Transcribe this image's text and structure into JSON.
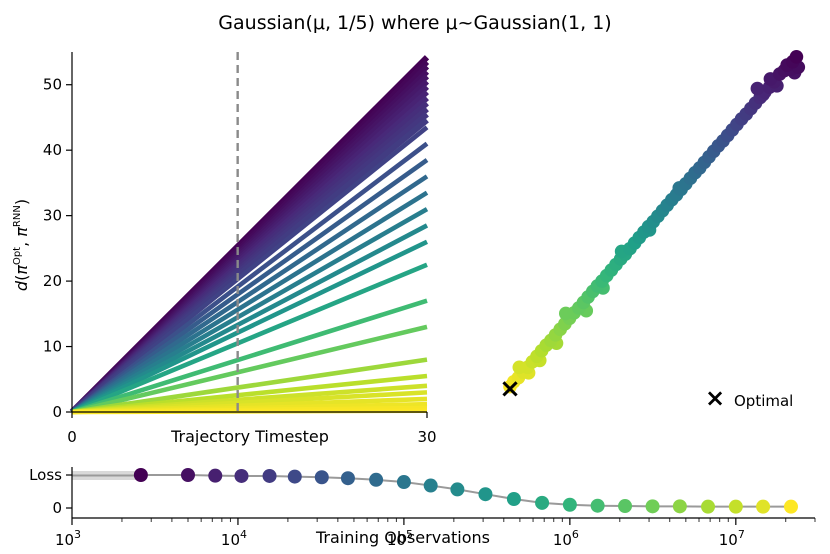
{
  "title": "Gaussian(μ, 1/5) where μ~Gaussian(1, 1)",
  "chart_data": [
    {
      "type": "line",
      "name_hint": "distance-vs-timestep",
      "xlabel": "Trajectory Timestep",
      "ylabel": "d(π^Opt, π^RNN)",
      "ylabel_parts": {
        "d": "d",
        "pi": "π",
        "opt": "Opt",
        "rnn": "RNN"
      },
      "x_ticks": [
        "0",
        "30"
      ],
      "y_ticks": [
        "0",
        "10",
        "20",
        "30",
        "40",
        "50"
      ],
      "xlim": [
        0,
        30
      ],
      "ylim": [
        0,
        55
      ],
      "vline_x": 14,
      "series_final_values": [
        54.2,
        53.5,
        52.8,
        52.0,
        51.3,
        50.5,
        49.7,
        48.9,
        48.0,
        47.2,
        46.3,
        45.5,
        44.6,
        43.5,
        41.0,
        38.5,
        36.0,
        33.5,
        31.0,
        28.5,
        26.0,
        22.5,
        17.0,
        13.0,
        8.0,
        5.5,
        4.0,
        3.0,
        2.0,
        1.2,
        0.6,
        0.2
      ],
      "colormap": "viridis"
    },
    {
      "type": "scatter",
      "name_hint": "rnn-embedding",
      "legend": {
        "marker": "×",
        "label": "Optimal",
        "position": "bottom-right"
      },
      "optimal_point": [
        0.0,
        0.0
      ],
      "points": [
        [
          0.0,
          0.2
        ],
        [
          0.4,
          0.9
        ],
        [
          0.9,
          1.5
        ],
        [
          1.4,
          2.3
        ],
        [
          1.9,
          3.0
        ],
        [
          2.4,
          3.8
        ],
        [
          2.9,
          4.6
        ],
        [
          3.4,
          5.4
        ],
        [
          3.9,
          6.2
        ],
        [
          4.4,
          6.9
        ],
        [
          4.9,
          7.7
        ],
        [
          5.4,
          8.5
        ],
        [
          5.9,
          9.3
        ],
        [
          6.4,
          10.1
        ],
        [
          6.9,
          10.9
        ],
        [
          7.4,
          11.6
        ],
        [
          7.9,
          12.4
        ],
        [
          8.4,
          13.2
        ],
        [
          8.9,
          14.0
        ],
        [
          9.4,
          14.8
        ],
        [
          9.9,
          15.5
        ],
        [
          10.4,
          16.3
        ],
        [
          10.9,
          17.1
        ],
        [
          11.4,
          17.9
        ],
        [
          11.9,
          18.7
        ],
        [
          12.4,
          19.4
        ],
        [
          12.9,
          20.2
        ],
        [
          13.4,
          21.0
        ],
        [
          13.9,
          21.8
        ],
        [
          14.4,
          22.6
        ],
        [
          14.9,
          23.4
        ],
        [
          15.4,
          24.1
        ],
        [
          15.9,
          24.9
        ],
        [
          16.4,
          25.7
        ],
        [
          16.9,
          26.5
        ],
        [
          17.4,
          27.3
        ],
        [
          17.9,
          28.0
        ],
        [
          18.4,
          28.8
        ],
        [
          18.9,
          29.6
        ],
        [
          19.4,
          30.4
        ],
        [
          19.9,
          31.2
        ],
        [
          20.4,
          31.9
        ],
        [
          20.9,
          32.7
        ],
        [
          21.4,
          33.5
        ],
        [
          21.9,
          34.3
        ],
        [
          22.4,
          35.1
        ],
        [
          22.9,
          35.8
        ],
        [
          23.4,
          36.6
        ],
        [
          23.9,
          37.4
        ],
        [
          24.4,
          38.2
        ],
        [
          24.9,
          39.0
        ],
        [
          25.4,
          39.7
        ],
        [
          25.9,
          40.5
        ],
        [
          26.4,
          41.3
        ],
        [
          26.9,
          42.1
        ],
        [
          27.4,
          42.9
        ],
        [
          27.9,
          43.6
        ],
        [
          28.4,
          44.4
        ],
        [
          29.0,
          45.5
        ],
        [
          29.5,
          46.0
        ],
        [
          29.8,
          46.8
        ],
        [
          30.2,
          46.2
        ],
        [
          30.6,
          45.7
        ],
        [
          31.0,
          46.5
        ],
        [
          30.4,
          47.3
        ],
        [
          30.8,
          48.0
        ],
        [
          28.7,
          43.8
        ],
        [
          28.0,
          44.8
        ],
        [
          27.2,
          42.5
        ],
        [
          26.6,
          43.4
        ],
        [
          1.0,
          3.0
        ],
        [
          2.0,
          2.2
        ],
        [
          3.2,
          4.0
        ],
        [
          5.0,
          6.5
        ],
        [
          6.0,
          10.8
        ],
        [
          8.2,
          11.2
        ],
        [
          10.0,
          14.5
        ],
        [
          12.0,
          19.8
        ],
        [
          15.0,
          22.9
        ],
        [
          18.2,
          29.0
        ]
      ]
    },
    {
      "type": "scatter",
      "name_hint": "training-loss",
      "xlabel": "Training Observations",
      "ylabel": "Loss",
      "xscale": "log",
      "xlim": [
        1000,
        30000000
      ],
      "x_ticks": [
        {
          "base": "10",
          "exp": "3"
        },
        {
          "base": "10",
          "exp": "4"
        },
        {
          "base": "10",
          "exp": "5"
        },
        {
          "base": "10",
          "exp": "6"
        },
        {
          "base": "10",
          "exp": "7"
        }
      ],
      "y_ticks": [
        "Loss",
        "0"
      ],
      "ylim": [
        0,
        1.25
      ],
      "points": [
        [
          2600,
          1.0
        ],
        [
          5000,
          1.0
        ],
        [
          7300,
          0.98
        ],
        [
          10500,
          0.97
        ],
        [
          15500,
          0.97
        ],
        [
          22000,
          0.95
        ],
        [
          32000,
          0.93
        ],
        [
          46000,
          0.9
        ],
        [
          68000,
          0.85
        ],
        [
          100000,
          0.78
        ],
        [
          145000,
          0.67
        ],
        [
          210000,
          0.55
        ],
        [
          310000,
          0.4
        ],
        [
          460000,
          0.25
        ],
        [
          680000,
          0.13
        ],
        [
          1000000,
          0.07
        ],
        [
          1470000,
          0.04
        ],
        [
          2150000,
          0.03
        ],
        [
          3150000,
          0.02
        ],
        [
          4600000,
          0.02
        ],
        [
          6800000,
          0.01
        ],
        [
          10000000,
          0.01
        ],
        [
          14600000,
          0.01
        ],
        [
          21500000,
          0.01
        ]
      ]
    }
  ]
}
